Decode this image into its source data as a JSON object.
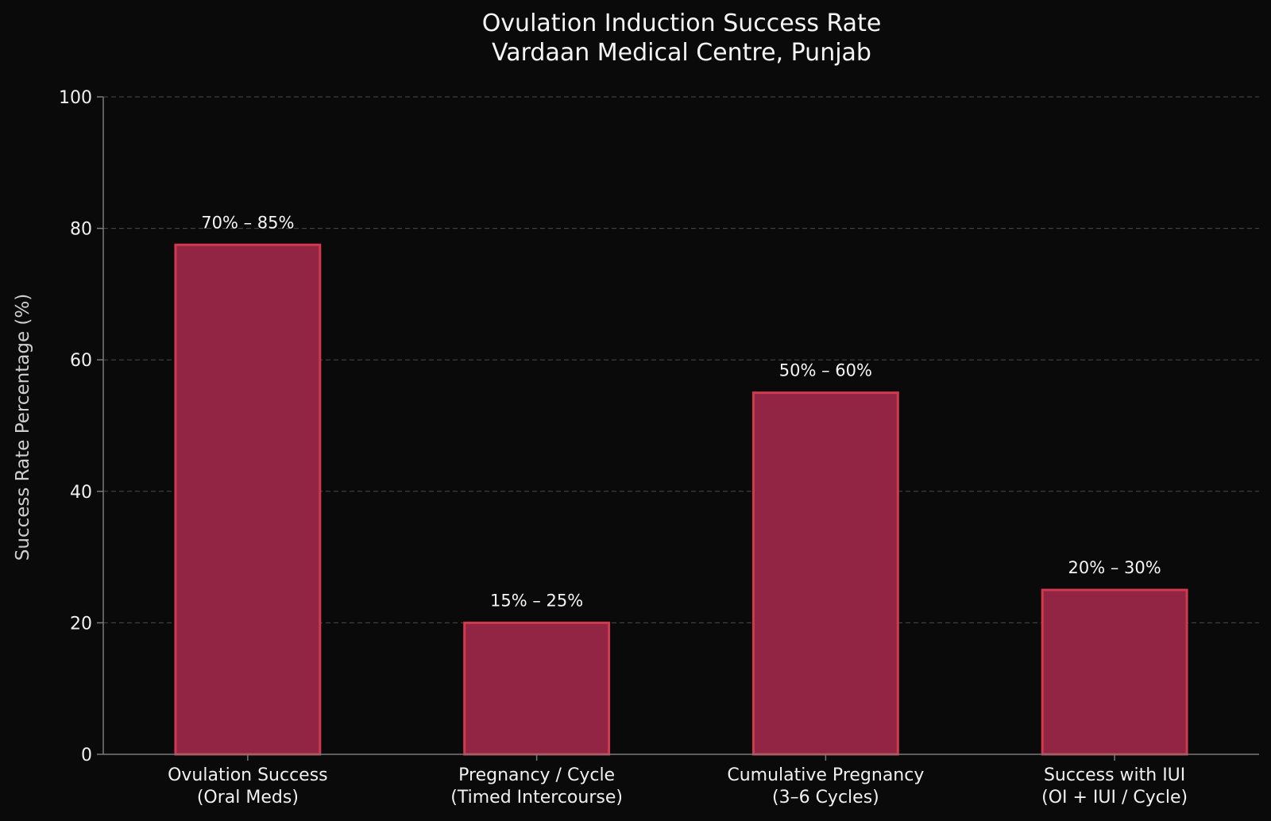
{
  "chart_data": {
    "type": "bar",
    "title": "Ovulation Induction Success Rate",
    "subtitle": "Vardaan Medical Centre, Punjab",
    "xlabel": "",
    "ylabel": "Success Rate Percentage (%)",
    "ylim": [
      0,
      100
    ],
    "yticks": [
      "0",
      "20",
      "40",
      "60",
      "80",
      "100"
    ],
    "grid": true,
    "categories": [
      [
        "Ovulation Success",
        "(Oral Meds)"
      ],
      [
        "Pregnancy / Cycle",
        "(Timed Intercourse)"
      ],
      [
        "Cumulative Pregnancy",
        "(3–6 Cycles)"
      ],
      [
        "Success with IUI",
        "(OI + IUI / Cycle)"
      ]
    ],
    "values": [
      77.5,
      20,
      55,
      25
    ],
    "labels": [
      "70% – 85%",
      "15% – 25%",
      "50% – 60%",
      "20% – 30%"
    ]
  },
  "colors": {
    "background": "#0a0a0a",
    "bar_fill": "#922544",
    "bar_edge": "#d1394f",
    "grid": "#4a4a4a",
    "axis": "#7a7a7a"
  }
}
